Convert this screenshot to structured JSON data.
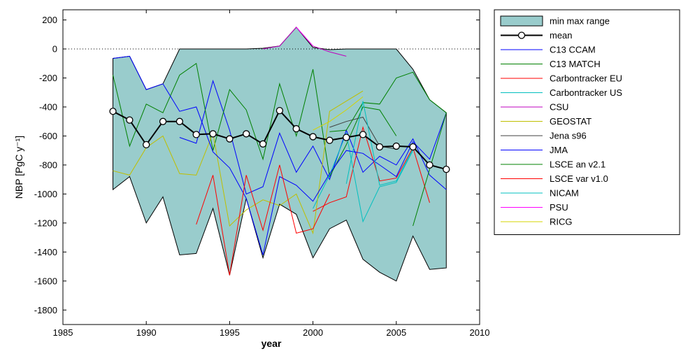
{
  "chart_data": {
    "type": "line",
    "xlabel": "year",
    "ylabel": "NBP [PgC y⁻¹]",
    "xlim": [
      1985,
      2010
    ],
    "ylim": [
      -1900,
      270
    ],
    "xticks": [
      1985,
      1990,
      1995,
      2000,
      2005,
      2010
    ],
    "yticks": [
      200,
      0,
      -200,
      -400,
      -600,
      -800,
      -1000,
      -1200,
      -1400,
      -1600,
      -1800
    ],
    "zero_line": true,
    "grid": false,
    "legend_position": "right",
    "range": {
      "name": "min max range",
      "color": "#99cccc",
      "upper": [
        [
          1988,
          -65
        ],
        [
          1989,
          -50
        ],
        [
          1990,
          -280
        ],
        [
          1991,
          -240
        ],
        [
          1992,
          0
        ],
        [
          1993,
          0
        ],
        [
          1994,
          0
        ],
        [
          1995,
          0
        ],
        [
          1996,
          0
        ],
        [
          1997,
          5
        ],
        [
          1998,
          20
        ],
        [
          1999,
          150
        ],
        [
          2000,
          10
        ],
        [
          2001,
          -5
        ],
        [
          2002,
          0
        ],
        [
          2003,
          0
        ],
        [
          2004,
          0
        ],
        [
          2005,
          0
        ],
        [
          2006,
          -140
        ],
        [
          2007,
          -350
        ],
        [
          2008,
          -440
        ]
      ],
      "lower": [
        [
          1988,
          -970
        ],
        [
          1989,
          -880
        ],
        [
          1990,
          -1200
        ],
        [
          1991,
          -1020
        ],
        [
          1992,
          -1420
        ],
        [
          1993,
          -1410
        ],
        [
          1994,
          -1100
        ],
        [
          1995,
          -1560
        ],
        [
          1996,
          -1030
        ],
        [
          1997,
          -1440
        ],
        [
          1998,
          -1070
        ],
        [
          1999,
          -1140
        ],
        [
          2000,
          -1440
        ],
        [
          2001,
          -1240
        ],
        [
          2002,
          -1180
        ],
        [
          2003,
          -1450
        ],
        [
          2004,
          -1540
        ],
        [
          2005,
          -1600
        ],
        [
          2006,
          -1290
        ],
        [
          2007,
          -1520
        ],
        [
          2008,
          -1510
        ]
      ]
    },
    "mean": {
      "name": "mean",
      "color": "#000000",
      "points": [
        [
          1988,
          -430
        ],
        [
          1989,
          -490
        ],
        [
          1990,
          -660
        ],
        [
          1991,
          -500
        ],
        [
          1992,
          -500
        ],
        [
          1993,
          -590
        ],
        [
          1994,
          -585
        ],
        [
          1995,
          -620
        ],
        [
          1996,
          -585
        ],
        [
          1997,
          -655
        ],
        [
          1998,
          -425
        ],
        [
          1999,
          -550
        ],
        [
          2000,
          -605
        ],
        [
          2001,
          -630
        ],
        [
          2002,
          -610
        ],
        [
          2003,
          -590
        ],
        [
          2004,
          -675
        ],
        [
          2005,
          -670
        ],
        [
          2006,
          -675
        ],
        [
          2007,
          -800
        ],
        [
          2008,
          -830
        ]
      ]
    },
    "series": [
      {
        "name": "C13 CCAM",
        "color": "#0000ff",
        "points": [
          [
            1992,
            -610
          ],
          [
            1993,
            -650
          ],
          [
            1994,
            -220
          ],
          [
            1995,
            -560
          ],
          [
            1996,
            -1000
          ],
          [
            1997,
            -950
          ],
          [
            1998,
            -580
          ],
          [
            1999,
            -850
          ],
          [
            2000,
            -670
          ],
          [
            2001,
            -900
          ],
          [
            2002,
            -560
          ],
          [
            2003,
            -850
          ],
          [
            2004,
            -740
          ],
          [
            2005,
            -800
          ],
          [
            2006,
            -620
          ],
          [
            2007,
            -870
          ],
          [
            2008,
            -970
          ]
        ]
      },
      {
        "name": "C13 MATCH",
        "color": "#008000",
        "points": [
          [
            1988,
            -180
          ],
          [
            1989,
            -670
          ],
          [
            1990,
            -380
          ],
          [
            1991,
            -440
          ],
          [
            1992,
            -180
          ],
          [
            1993,
            -100
          ],
          [
            1994,
            -700
          ],
          [
            1995,
            -280
          ],
          [
            1996,
            -420
          ],
          [
            1997,
            -760
          ],
          [
            1998,
            -240
          ],
          [
            1999,
            -600
          ],
          [
            2000,
            -140
          ],
          [
            2001,
            -880
          ],
          [
            2002,
            -660
          ],
          [
            2003,
            -400
          ],
          [
            2004,
            -420
          ],
          [
            2005,
            -600
          ]
        ]
      },
      {
        "name": "Carbontracker EU",
        "color": "#ff0000",
        "points": [
          [
            2000,
            -1120
          ],
          [
            2001,
            -1060
          ],
          [
            2002,
            -1020
          ],
          [
            2003,
            -540
          ],
          [
            2004,
            -910
          ],
          [
            2005,
            -890
          ],
          [
            2006,
            -680
          ],
          [
            2007,
            -1060
          ]
        ]
      },
      {
        "name": "Carbontracker US",
        "color": "#00bfbf",
        "points": [
          [
            2000,
            -1100
          ],
          [
            2001,
            -870
          ],
          [
            2002,
            -580
          ],
          [
            2003,
            -1190
          ],
          [
            2004,
            -950
          ],
          [
            2005,
            -920
          ],
          [
            2006,
            -700
          ]
        ]
      },
      {
        "name": "CSU",
        "color": "#bf00bf",
        "points": [
          [
            1997,
            0
          ],
          [
            1998,
            20
          ],
          [
            1999,
            150
          ],
          [
            2000,
            20
          ],
          [
            2001,
            -20
          ],
          [
            2002,
            -50
          ]
        ]
      },
      {
        "name": "GEOSTAT",
        "color": "#bfbf00",
        "points": [
          [
            1988,
            -840
          ],
          [
            1989,
            -870
          ],
          [
            1990,
            -680
          ],
          [
            1991,
            -600
          ],
          [
            1992,
            -860
          ],
          [
            1993,
            -870
          ],
          [
            1994,
            -580
          ],
          [
            1995,
            -1220
          ],
          [
            1996,
            -1110
          ],
          [
            1997,
            -1040
          ],
          [
            1998,
            -1080
          ],
          [
            1999,
            -1000
          ],
          [
            2000,
            -1270
          ],
          [
            2001,
            -430
          ],
          [
            2002,
            -360
          ],
          [
            2003,
            -290
          ]
        ]
      },
      {
        "name": "Jena s96",
        "color": "#404040",
        "points": [
          [
            2001,
            -540
          ],
          [
            2002,
            -500
          ],
          [
            2003,
            -470
          ],
          [
            2004,
            -670
          ],
          [
            2005,
            -690
          ]
        ]
      },
      {
        "name": "JMA",
        "color": "#0000ff",
        "points": [
          [
            1988,
            -65
          ],
          [
            1989,
            -50
          ],
          [
            1990,
            -280
          ],
          [
            1991,
            -240
          ],
          [
            1992,
            -430
          ],
          [
            1993,
            -400
          ],
          [
            1994,
            -710
          ],
          [
            1995,
            -820
          ],
          [
            1996,
            -1030
          ],
          [
            1997,
            -1420
          ],
          [
            1998,
            -880
          ],
          [
            1999,
            -940
          ],
          [
            2000,
            -1050
          ],
          [
            2001,
            -860
          ],
          [
            2002,
            -700
          ],
          [
            2003,
            -720
          ],
          [
            2004,
            -800
          ],
          [
            2005,
            -880
          ],
          [
            2006,
            -640
          ],
          [
            2007,
            -760
          ],
          [
            2008,
            -440
          ]
        ]
      },
      {
        "name": "LSCE an v2.1",
        "color": "#008000",
        "points": [
          [
            2001,
            -570
          ],
          [
            2002,
            -560
          ],
          [
            2003,
            -370
          ],
          [
            2004,
            -380
          ],
          [
            2005,
            -200
          ],
          [
            2006,
            -160
          ],
          [
            2007,
            -350
          ],
          [
            2008,
            -440
          ],
          [
            2006,
            -1220
          ]
        ]
      },
      {
        "name": "LSCE var v1.0",
        "color": "#ff0000",
        "points": [
          [
            1993,
            -1210
          ],
          [
            1994,
            -870
          ],
          [
            1995,
            -1560
          ],
          [
            1996,
            -870
          ],
          [
            1997,
            -1250
          ],
          [
            1998,
            -800
          ],
          [
            1999,
            -1270
          ],
          [
            2000,
            -1240
          ],
          [
            2001,
            -1000
          ]
        ]
      },
      {
        "name": "NICAM",
        "color": "#00bfbf",
        "points": [
          [
            2002,
            -930
          ],
          [
            2003,
            -360
          ],
          [
            2004,
            -940
          ],
          [
            2005,
            -910
          ],
          [
            2006,
            -690
          ]
        ]
      },
      {
        "name": "PSU",
        "color": "#ff00ff",
        "points": [
          [
            1999,
            150
          ],
          [
            2000,
            20
          ]
        ]
      },
      {
        "name": "RICG",
        "color": "#d4d400",
        "points": [
          [
            2000,
            -560
          ],
          [
            2001,
            -500
          ],
          [
            2002,
            -420
          ],
          [
            2003,
            -330
          ]
        ]
      }
    ]
  }
}
